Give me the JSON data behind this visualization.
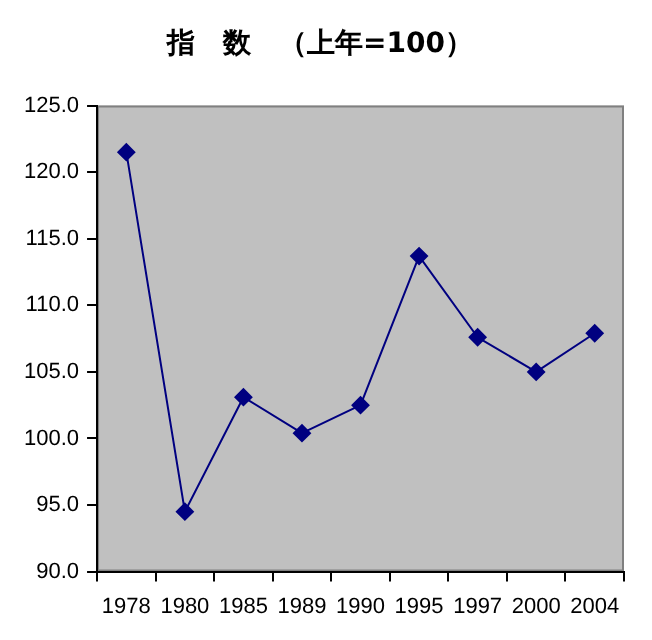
{
  "chart_data": {
    "type": "line",
    "title": "指　数　（上年=100）",
    "categories": [
      "1978",
      "1980",
      "1985",
      "1989",
      "1990",
      "1995",
      "1997",
      "2000",
      "2004"
    ],
    "series": [
      {
        "color": "#000080",
        "values": [
          121.5,
          94.5,
          103.1,
          100.4,
          102.5,
          113.7,
          107.6,
          105.0,
          107.9
        ]
      }
    ],
    "ylim": [
      90,
      125
    ],
    "yticks": [
      {
        "value": 90,
        "label": "90.0"
      },
      {
        "value": 95,
        "label": "95.0"
      },
      {
        "value": 100,
        "label": "100.0"
      },
      {
        "value": 105,
        "label": "105.0"
      },
      {
        "value": 110,
        "label": "110.0"
      },
      {
        "value": 115,
        "label": "115.0"
      },
      {
        "value": 120,
        "label": "120.0"
      },
      {
        "value": 125,
        "label": "125.0"
      }
    ],
    "grid": false,
    "legend": false,
    "marker": "diamond",
    "line_style": "solid"
  }
}
